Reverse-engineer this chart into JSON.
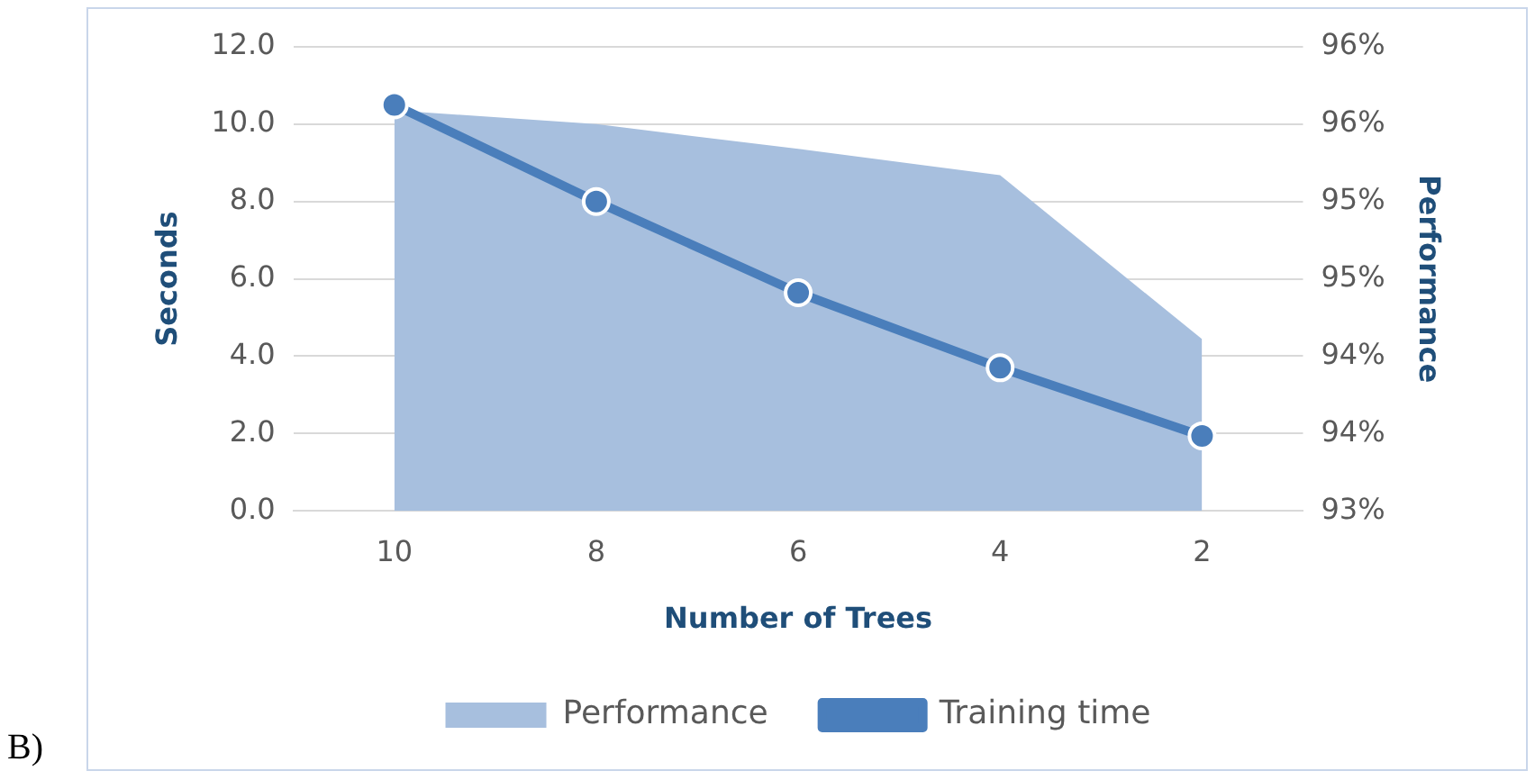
{
  "chart_data": {
    "type": "line",
    "xlabel": "Number of Trees",
    "ylabel": "Seconds",
    "y2label": "Performance",
    "categories": [
      "10",
      "8",
      "6",
      "4",
      "2"
    ],
    "series": [
      {
        "name": "Performance",
        "type": "area",
        "axis": "y2",
        "color": "#a7bfde",
        "values": [
          95.59,
          95.5,
          95.34,
          95.17,
          94.11
        ]
      },
      {
        "name": "Training time",
        "color": "#4a7ebb",
        "marker": "circle",
        "values": [
          10.5,
          8.0,
          5.64,
          3.7,
          1.94
        ]
      }
    ],
    "ylim": [
      0,
      12
    ],
    "yticks": [
      {
        "value": 0,
        "label": "0.0"
      },
      {
        "value": 2,
        "label": "2.0"
      },
      {
        "value": 4,
        "label": "4.0"
      },
      {
        "value": 6,
        "label": "6.0"
      },
      {
        "value": 8,
        "label": "8.0"
      },
      {
        "value": 10,
        "label": "10.0"
      },
      {
        "value": 12,
        "label": "12.0"
      }
    ],
    "y2lim": [
      93,
      96
    ],
    "y2ticks": [
      {
        "value": 93,
        "label": "93%"
      },
      {
        "value": 93.5,
        "label": "94%"
      },
      {
        "value": 94,
        "label": "94%"
      },
      {
        "value": 94.5,
        "label": "95%"
      },
      {
        "value": 95,
        "label": "95%"
      },
      {
        "value": 95.5,
        "label": "96%"
      },
      {
        "value": 96,
        "label": "96%"
      }
    ],
    "grid": "y",
    "legend": "bottom",
    "annotations": [
      "B)"
    ]
  }
}
